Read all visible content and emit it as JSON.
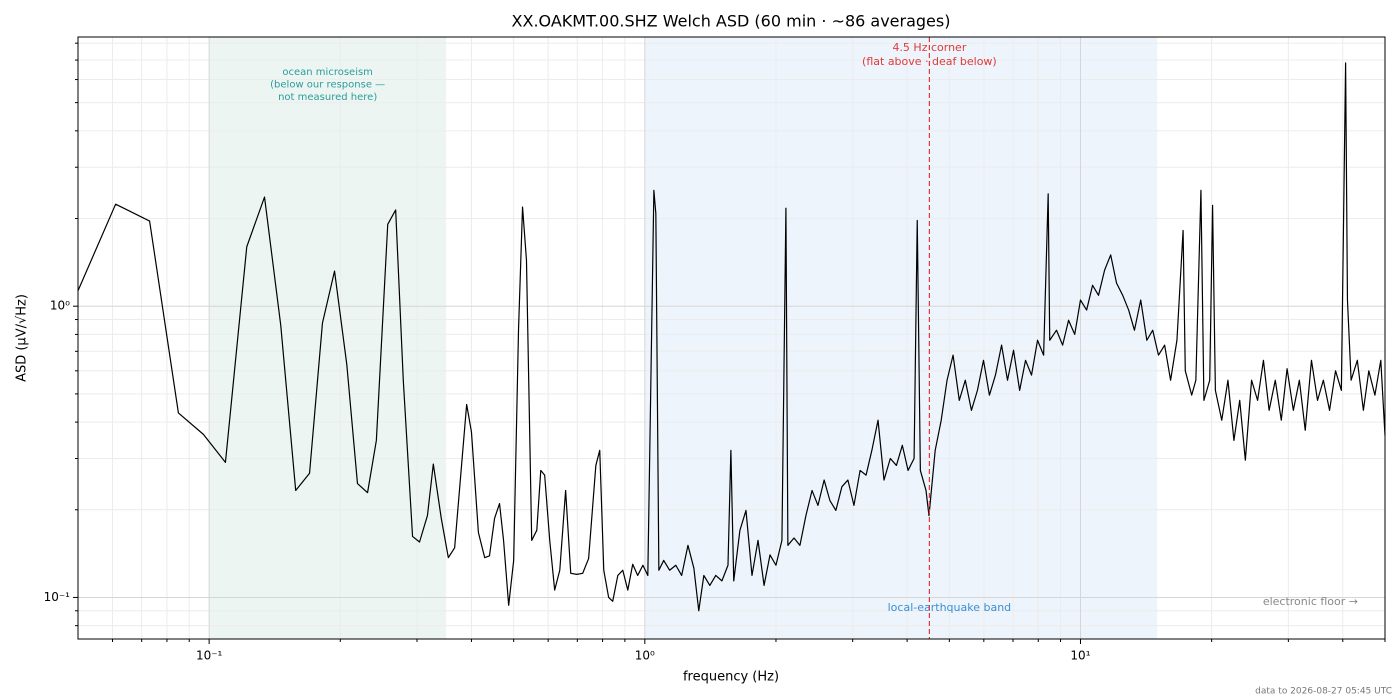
{
  "chart_data": {
    "type": "line",
    "title": "XX.OAKMT.00.SHZ  Welch ASD  (60 min · ~86 averages)",
    "x_label": "frequency (Hz)",
    "y_label": "ASD (µV/√Hz)",
    "footer": "data to 2026-08-27 05:45 UTC",
    "xscale": "log",
    "yscale": "log",
    "grid": true,
    "xlim": [
      0.05,
      50
    ],
    "ylim": [
      0.072,
      8.4
    ],
    "xticks": [
      {
        "value": 0.1,
        "label": "10⁻¹"
      },
      {
        "value": 1,
        "label": "10⁰"
      },
      {
        "value": 10,
        "label": "10¹"
      }
    ],
    "yticks": [
      {
        "value": 0.1,
        "label": "10⁻¹"
      },
      {
        "value": 1,
        "label": "10⁰"
      }
    ],
    "xminor": [
      0.06,
      0.07,
      0.08,
      0.09,
      0.2,
      0.3,
      0.4,
      0.5,
      0.6,
      0.7,
      0.8,
      0.9,
      2,
      3,
      4,
      5,
      6,
      7,
      8,
      9,
      20,
      30,
      40,
      50
    ],
    "yminor": [
      0.08,
      0.09,
      0.2,
      0.3,
      0.4,
      0.5,
      0.6,
      0.7,
      0.8,
      0.9,
      2,
      3,
      4,
      5,
      6,
      7,
      8
    ],
    "bands": [
      {
        "xlim": [
          0.1,
          0.35
        ],
        "color": "#edf5f3",
        "label_lines": [
          "ocean microseism",
          "(below our response —",
          "not measured here)"
        ],
        "label_color": "#2a9d9a"
      },
      {
        "xlim": [
          1,
          15
        ],
        "color": "#eef4fb",
        "label_lines": [
          "local-earthquake band"
        ],
        "label_color": "#3a8fd6"
      }
    ],
    "vline": {
      "x": 4.5,
      "color": "#e03a3a",
      "label_lines": [
        "4.5 Hz corner",
        "(flat above · deaf below)"
      ]
    },
    "floor_note": "electronic floor →",
    "x": [
      0.05,
      0.061,
      0.073,
      0.085,
      0.097,
      0.109,
      0.122,
      0.134,
      0.146,
      0.158,
      0.17,
      0.182,
      0.194,
      0.207,
      0.219,
      0.231,
      0.242,
      0.257,
      0.268,
      0.279,
      0.293,
      0.304,
      0.317,
      0.327,
      0.341,
      0.354,
      0.366,
      0.39,
      0.4,
      0.415,
      0.429,
      0.44,
      0.452,
      0.464,
      0.474,
      0.487,
      0.5,
      0.513,
      0.524,
      0.535,
      0.55,
      0.565,
      0.577,
      0.589,
      0.605,
      0.621,
      0.638,
      0.658,
      0.676,
      0.698,
      0.72,
      0.743,
      0.772,
      0.788,
      0.805,
      0.826,
      0.844,
      0.867,
      0.89,
      0.914,
      0.938,
      0.963,
      0.99,
      1.016,
      1.049,
      1.06,
      1.077,
      1.105,
      1.14,
      1.178,
      1.215,
      1.256,
      1.296,
      1.33,
      1.366,
      1.41,
      1.455,
      1.503,
      1.552,
      1.576,
      1.6,
      1.653,
      1.707,
      1.762,
      1.819,
      1.878,
      1.938,
      2.0,
      2.064,
      2.108,
      2.13,
      2.2,
      2.27,
      2.343,
      2.42,
      2.497,
      2.58,
      2.66,
      2.745,
      2.834,
      2.925,
      3.02,
      3.12,
      3.22,
      3.32,
      3.43,
      3.54,
      3.66,
      3.78,
      3.9,
      4.02,
      4.15,
      4.22,
      4.29,
      4.42,
      4.49,
      4.64,
      4.79,
      4.94,
      5.1,
      5.27,
      5.44,
      5.62,
      5.8,
      5.99,
      6.18,
      6.38,
      6.59,
      6.8,
      7.02,
      7.25,
      7.48,
      7.72,
      7.97,
      8.23,
      8.43,
      8.5,
      8.81,
      9.1,
      9.39,
      9.7,
      10.0,
      10.33,
      10.66,
      11.0,
      11.36,
      11.73,
      12.1,
      12.5,
      12.9,
      13.3,
      13.75,
      14.2,
      14.65,
      15.1,
      15.6,
      16.1,
      16.65,
      17.2,
      17.4,
      18.0,
      18.4,
      18.9,
      19.2,
      19.8,
      20.1,
      20.4,
      21.1,
      21.8,
      22.5,
      23.2,
      23.9,
      24.7,
      25.5,
      26.3,
      27.1,
      28.0,
      28.9,
      29.8,
      30.8,
      31.8,
      32.8,
      33.9,
      35.0,
      36.1,
      37.3,
      38.5,
      39.7,
      40.6,
      41.0,
      41.8,
      43.2,
      44.6,
      45.9,
      47.4,
      48.9,
      50
    ],
    "series": [
      {
        "name": "ASD",
        "color": "#000000",
        "values": [
          1.13,
          2.24,
          1.96,
          0.43,
          0.363,
          0.291,
          1.6,
          2.37,
          0.86,
          0.233,
          0.267,
          0.875,
          1.32,
          0.63,
          0.246,
          0.229,
          0.346,
          1.91,
          2.14,
          0.557,
          0.162,
          0.155,
          0.191,
          0.287,
          0.187,
          0.137,
          0.148,
          0.46,
          0.37,
          0.167,
          0.137,
          0.139,
          0.187,
          0.21,
          0.157,
          0.094,
          0.134,
          0.83,
          2.19,
          1.44,
          0.157,
          0.17,
          0.273,
          0.263,
          0.157,
          0.106,
          0.124,
          0.233,
          0.121,
          0.12,
          0.121,
          0.136,
          0.284,
          0.32,
          0.124,
          0.1,
          0.097,
          0.119,
          0.124,
          0.106,
          0.13,
          0.119,
          0.129,
          0.119,
          2.5,
          2.08,
          0.124,
          0.134,
          0.124,
          0.129,
          0.119,
          0.151,
          0.126,
          0.09,
          0.119,
          0.11,
          0.119,
          0.114,
          0.129,
          0.32,
          0.114,
          0.17,
          0.199,
          0.119,
          0.157,
          0.11,
          0.14,
          0.129,
          0.157,
          2.17,
          0.151,
          0.16,
          0.151,
          0.191,
          0.233,
          0.207,
          0.253,
          0.215,
          0.199,
          0.24,
          0.253,
          0.207,
          0.273,
          0.263,
          0.32,
          0.406,
          0.253,
          0.3,
          0.284,
          0.333,
          0.273,
          0.3,
          1.97,
          0.273,
          0.233,
          0.191,
          0.32,
          0.406,
          0.557,
          0.679,
          0.475,
          0.557,
          0.439,
          0.514,
          0.652,
          0.495,
          0.58,
          0.735,
          0.557,
          0.706,
          0.514,
          0.652,
          0.58,
          0.764,
          0.679,
          2.43,
          0.764,
          0.827,
          0.735,
          0.895,
          0.8,
          1.05,
          0.97,
          1.18,
          1.09,
          1.33,
          1.5,
          1.2,
          1.09,
          0.97,
          0.827,
          1.05,
          0.764,
          0.827,
          0.679,
          0.735,
          0.557,
          0.764,
          1.82,
          0.6,
          0.495,
          0.557,
          2.5,
          0.475,
          0.557,
          2.22,
          0.514,
          0.406,
          0.557,
          0.346,
          0.475,
          0.296,
          0.557,
          0.475,
          0.652,
          0.439,
          0.557,
          0.406,
          0.61,
          0.439,
          0.557,
          0.375,
          0.652,
          0.475,
          0.557,
          0.439,
          0.6,
          0.514,
          6.84,
          1.05,
          0.557,
          0.652,
          0.439,
          0.6,
          0.495,
          0.652,
          0.36
        ]
      }
    ]
  }
}
